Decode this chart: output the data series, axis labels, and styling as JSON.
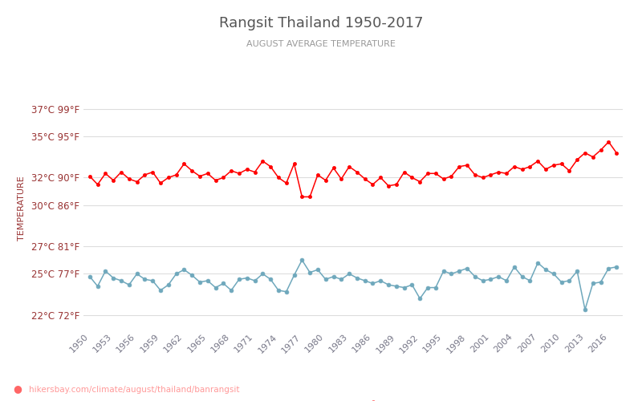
{
  "title": "Rangsit Thailand 1950-2017",
  "subtitle": "AUGUST AVERAGE TEMPERATURE",
  "ylabel": "TEMPERATURE",
  "url_text": "hikersbay.com/climate/august/thailand/banrangsit",
  "years": [
    1950,
    1951,
    1952,
    1953,
    1954,
    1955,
    1956,
    1957,
    1958,
    1959,
    1960,
    1961,
    1962,
    1963,
    1964,
    1965,
    1966,
    1967,
    1968,
    1969,
    1970,
    1971,
    1972,
    1973,
    1974,
    1975,
    1976,
    1977,
    1978,
    1979,
    1980,
    1981,
    1982,
    1983,
    1984,
    1985,
    1986,
    1987,
    1988,
    1989,
    1990,
    1991,
    1992,
    1993,
    1994,
    1995,
    1996,
    1997,
    1998,
    1999,
    2000,
    2001,
    2002,
    2003,
    2004,
    2005,
    2006,
    2007,
    2008,
    2009,
    2010,
    2011,
    2012,
    2013,
    2014,
    2015,
    2016,
    2017
  ],
  "day_temps": [
    32.1,
    31.5,
    32.3,
    31.8,
    32.4,
    31.9,
    31.7,
    32.2,
    32.4,
    31.6,
    32.0,
    32.2,
    33.0,
    32.5,
    32.1,
    32.3,
    31.8,
    32.0,
    32.5,
    32.3,
    32.6,
    32.4,
    33.2,
    32.8,
    32.0,
    31.6,
    33.0,
    30.6,
    30.6,
    32.2,
    31.8,
    32.7,
    31.9,
    32.8,
    32.4,
    31.9,
    31.5,
    32.0,
    31.4,
    31.5,
    32.4,
    32.0,
    31.7,
    32.3,
    32.3,
    31.9,
    32.1,
    32.8,
    32.9,
    32.2,
    32.0,
    32.2,
    32.4,
    32.3,
    32.8,
    32.6,
    32.8,
    33.2,
    32.6,
    32.9,
    33.0,
    32.5,
    33.3,
    33.8,
    33.5,
    34.0,
    34.6,
    33.8
  ],
  "night_temps": [
    24.8,
    24.1,
    25.2,
    24.7,
    24.5,
    24.2,
    25.0,
    24.6,
    24.5,
    23.8,
    24.2,
    25.0,
    25.3,
    24.9,
    24.4,
    24.5,
    24.0,
    24.3,
    23.8,
    24.6,
    24.7,
    24.5,
    25.0,
    24.6,
    23.8,
    23.7,
    24.9,
    26.0,
    25.1,
    25.3,
    24.6,
    24.8,
    24.6,
    25.0,
    24.7,
    24.5,
    24.3,
    24.5,
    24.2,
    24.1,
    24.0,
    24.2,
    23.2,
    24.0,
    24.0,
    25.2,
    25.0,
    25.2,
    25.4,
    24.8,
    24.5,
    24.6,
    24.8,
    24.5,
    25.5,
    24.8,
    24.5,
    25.8,
    25.3,
    25.0,
    24.4,
    24.5,
    25.2,
    22.4,
    24.3,
    24.4,
    25.4,
    25.5
  ],
  "day_color": "#ff0000",
  "night_color": "#6fa8bc",
  "background_color": "#ffffff",
  "grid_color": "#dddddd",
  "title_color": "#555555",
  "subtitle_color": "#999999",
  "ylabel_color": "#993333",
  "ytick_color": "#993333",
  "xtick_color": "#777788",
  "ytick_labels": [
    "22°C 72°F",
    "25°C 77°F",
    "27°C 81°F",
    "30°C 86°F",
    "32°C 90°F",
    "35°C 95°F",
    "37°C 99°F"
  ],
  "ytick_vals": [
    22,
    25,
    27,
    30,
    32,
    35,
    37
  ],
  "ylim": [
    21.0,
    38.5
  ],
  "xlim": [
    1949.2,
    2017.8
  ],
  "xtick_years": [
    1950,
    1953,
    1956,
    1959,
    1962,
    1965,
    1968,
    1971,
    1974,
    1977,
    1980,
    1983,
    1986,
    1989,
    1992,
    1995,
    1998,
    2001,
    2004,
    2007,
    2010,
    2013,
    2016
  ],
  "legend_night_color": "#6fa8bc",
  "legend_day_color": "#ff0000",
  "url_color": "#ff9999",
  "pin_color": "#ff6666"
}
